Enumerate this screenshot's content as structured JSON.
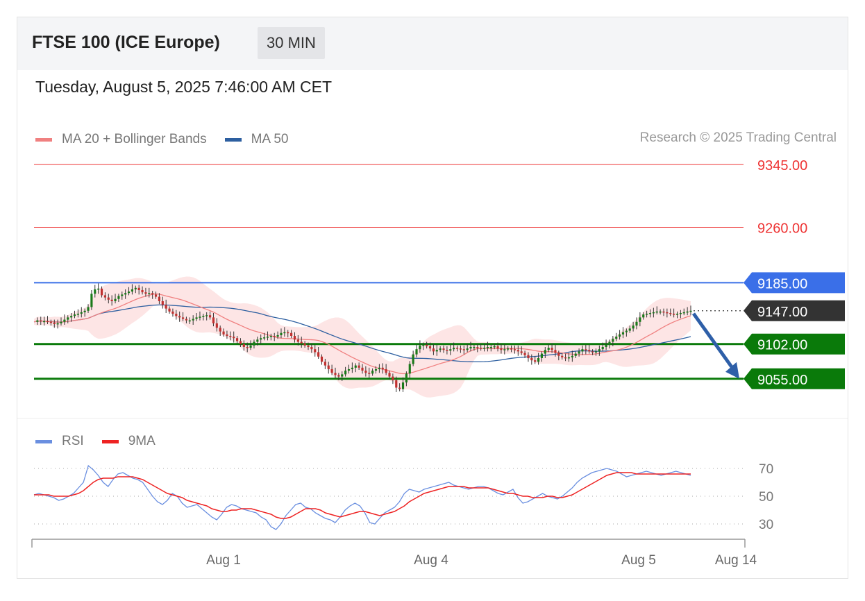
{
  "header": {
    "title": "FTSE 100 (ICE Europe)",
    "interval": "30 MIN",
    "datetime": "Tuesday, August 5, 2025 7:46:00 AM CET"
  },
  "legend": {
    "ma20": {
      "label": "MA 20 + Bollinger Bands",
      "color": "#f08080"
    },
    "ma50": {
      "label": "MA 50",
      "color": "#2d5fa0"
    },
    "copyright": "Research © 2025 Trading Central"
  },
  "rsi_legend": {
    "rsi": {
      "label": "RSI",
      "color": "#6a8fe0"
    },
    "ma9": {
      "label": "9MA",
      "color": "#ee2222"
    }
  },
  "colors": {
    "up": "#1a7a1a",
    "down": "#c0302f",
    "candle_wick": "#333333",
    "resistance": "#ee3333",
    "pivot": "#3a6fe8",
    "support": "#0a7a0a",
    "last": "#333333",
    "arrow": "#2e5fa8",
    "band_fill": "#fde1e1"
  },
  "chart_data": [
    {
      "type": "candlestick",
      "title": "FTSE 100 (ICE Europe)",
      "x_ticks": [
        "Aug 1",
        "Aug 4",
        "Aug 5",
        "Aug 14"
      ],
      "ylim": [
        8990,
        9375
      ],
      "levels": [
        {
          "value": 9345.0,
          "label": "9345.00",
          "kind": "resistance"
        },
        {
          "value": 9260.0,
          "label": "9260.00",
          "kind": "resistance"
        },
        {
          "value": 9185.0,
          "label": "9185.00",
          "kind": "pivot"
        },
        {
          "value": 9147.0,
          "label": "9147.00",
          "kind": "last"
        },
        {
          "value": 9102.0,
          "label": "9102.00",
          "kind": "support"
        },
        {
          "value": 9055.0,
          "label": "9055.00",
          "kind": "support"
        }
      ],
      "close_path": [
        9132,
        9134,
        9133,
        9133,
        9132,
        9131,
        9129,
        9130,
        9132,
        9135,
        9138,
        9140,
        9142,
        9143,
        9145,
        9147,
        9152,
        9170,
        9176,
        9177,
        9168,
        9165,
        9162,
        9160,
        9163,
        9167,
        9169,
        9171,
        9173,
        9176,
        9178,
        9175,
        9172,
        9170,
        9171,
        9169,
        9166,
        9160,
        9155,
        9150,
        9146,
        9143,
        9140,
        9138,
        9136,
        9134,
        9134,
        9136,
        9138,
        9139,
        9140,
        9141,
        9138,
        9130,
        9124,
        9119,
        9115,
        9113,
        9112,
        9110,
        9106,
        9102,
        9098,
        9097,
        9100,
        9105,
        9108,
        9110,
        9111,
        9112,
        9113,
        9112,
        9114,
        9117,
        9118,
        9117,
        9113,
        9108,
        9105,
        9103,
        9100,
        9098,
        9095,
        9091,
        9085,
        9078,
        9073,
        9068,
        9063,
        9060,
        9058,
        9061,
        9066,
        9068,
        9070,
        9073,
        9070,
        9066,
        9063,
        9062,
        9066,
        9068,
        9070,
        9068,
        9063,
        9058,
        9053,
        9043,
        9041,
        9050,
        9062,
        9075,
        9088,
        9095,
        9100,
        9101,
        9099,
        9096,
        9092,
        9094,
        9096,
        9094,
        9093,
        9095,
        9097,
        9096,
        9095,
        9094,
        9096,
        9098,
        9098,
        9097,
        9096,
        9097,
        9098,
        9098,
        9099,
        9096,
        9094,
        9095,
        9096,
        9095,
        9094,
        9092,
        9090,
        9087,
        9083,
        9080,
        9078,
        9083,
        9089,
        9094,
        9097,
        9094,
        9090,
        9086,
        9084,
        9083,
        9084,
        9086,
        9089,
        9092,
        9095,
        9094,
        9092,
        9091,
        9092,
        9095,
        9098,
        9101,
        9105,
        9109,
        9112,
        9115,
        9118,
        9120,
        9123,
        9127,
        9132,
        9138,
        9142,
        9143,
        9144,
        9145,
        9146,
        9146,
        9145,
        9144,
        9143,
        9142,
        9143,
        9144,
        9145,
        9146,
        9147
      ],
      "series": [
        {
          "name": "MA 20 + Bollinger Bands"
        },
        {
          "name": "MA 50"
        }
      ],
      "forecast": {
        "from": 9147.0,
        "to": 9055.0
      }
    },
    {
      "type": "line",
      "ylim": [
        20,
        80
      ],
      "y_ticks": [
        70,
        50,
        30
      ],
      "series": [
        {
          "name": "RSI",
          "values": [
            51,
            52,
            51,
            50,
            49,
            47,
            48,
            50,
            52,
            56,
            60,
            72,
            69,
            65,
            60,
            57,
            62,
            66,
            67,
            65,
            63,
            62,
            60,
            55,
            50,
            46,
            44,
            47,
            52,
            50,
            45,
            42,
            43,
            44,
            41,
            38,
            35,
            33,
            37,
            42,
            44,
            43,
            41,
            40,
            39,
            38,
            35,
            33,
            28,
            26,
            30,
            36,
            40,
            44,
            45,
            42,
            41,
            38,
            36,
            34,
            33,
            31,
            35,
            40,
            43,
            45,
            43,
            38,
            31,
            30,
            34,
            38,
            40,
            42,
            46,
            52,
            55,
            54,
            53,
            55,
            56,
            57,
            58,
            59,
            60,
            58,
            57,
            56,
            55,
            56,
            57,
            57,
            56,
            54,
            52,
            51,
            53,
            55,
            49,
            45,
            46,
            48,
            50,
            52,
            50,
            49,
            48,
            50,
            53,
            56,
            60,
            63,
            65,
            67,
            68,
            69,
            70,
            69,
            68,
            66,
            64,
            65,
            66,
            67,
            68,
            67,
            66,
            65,
            66,
            67,
            68,
            67,
            66,
            65
          ]
        },
        {
          "name": "9MA",
          "values": [
            51,
            51,
            51,
            51,
            50,
            50,
            50,
            50,
            51,
            52,
            54,
            57,
            60,
            62,
            63,
            63,
            63,
            64,
            64,
            64,
            64,
            63,
            62,
            60,
            58,
            56,
            54,
            52,
            51,
            50,
            49,
            47,
            46,
            45,
            44,
            43,
            41,
            40,
            39,
            39,
            40,
            40,
            41,
            41,
            41,
            40,
            39,
            38,
            37,
            35,
            34,
            34,
            35,
            37,
            39,
            41,
            41,
            41,
            40,
            38,
            37,
            36,
            35,
            36,
            37,
            38,
            39,
            39,
            38,
            37,
            36,
            37,
            38,
            39,
            41,
            43,
            46,
            48,
            50,
            52,
            53,
            54,
            55,
            56,
            57,
            57,
            57,
            57,
            56,
            56,
            56,
            56,
            56,
            55,
            54,
            53,
            52,
            52,
            51,
            50,
            50,
            49,
            49,
            49,
            50,
            50,
            49,
            49,
            50,
            51,
            53,
            55,
            57,
            59,
            61,
            63,
            65,
            66,
            67,
            67,
            67,
            67,
            66,
            66,
            66,
            66,
            66,
            66,
            66,
            66,
            66,
            66,
            66,
            66
          ]
        }
      ]
    }
  ]
}
